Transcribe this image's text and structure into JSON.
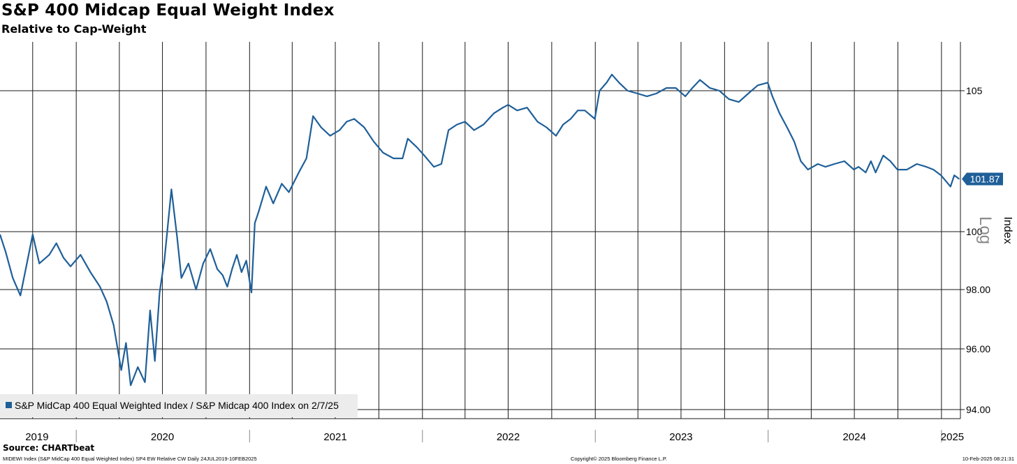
{
  "colors": {
    "series": "#1f5f99",
    "grid": "#1a1a1a",
    "legend_bg": "#ececec",
    "last_tag_bg": "#1f5f99"
  },
  "chart_data": {
    "type": "line",
    "title": "S&P 400 Midcap Equal Weight Index",
    "subtitle": "Relative to Cap-Weight",
    "ylabel": "Index",
    "scale": "Log",
    "ylim": [
      94,
      106.5
    ],
    "xlim": [
      "2019-07-24",
      "2025-02-10"
    ],
    "yticks": [
      {
        "value": 105,
        "label": "105"
      },
      {
        "value": 100,
        "label": "100"
      },
      {
        "value": 98,
        "label": "98.00"
      },
      {
        "value": 96,
        "label": "96.00"
      },
      {
        "value": 94,
        "label": "94.00"
      }
    ],
    "year_labels": [
      {
        "label": "2019",
        "date": "2019-10-10"
      },
      {
        "label": "2020",
        "date": "2020-07-01"
      },
      {
        "label": "2021",
        "date": "2021-07-01"
      },
      {
        "label": "2022",
        "date": "2022-07-01"
      },
      {
        "label": "2023",
        "date": "2023-07-01"
      },
      {
        "label": "2024",
        "date": "2024-07-01"
      },
      {
        "label": "2025",
        "date": "2025-01-24"
      }
    ],
    "legend": "S&P MidCap 400 Equal Weighted Index / S&P Midcap 400 Index on 2/7/25",
    "legend_position": "bottom-left",
    "last_value_label": "101.87",
    "grid": true,
    "series": [
      {
        "name": "S&P MidCap 400 Equal Weighted Index / S&P Midcap 400 Index",
        "points": [
          [
            "2019-07-24",
            99.9
          ],
          [
            "2019-08-05",
            99.3
          ],
          [
            "2019-08-20",
            98.4
          ],
          [
            "2019-09-05",
            97.8
          ],
          [
            "2019-09-20",
            99.0
          ],
          [
            "2019-10-01",
            99.9
          ],
          [
            "2019-10-15",
            98.9
          ],
          [
            "2019-11-05",
            99.2
          ],
          [
            "2019-11-20",
            99.6
          ],
          [
            "2019-12-05",
            99.1
          ],
          [
            "2019-12-20",
            98.8
          ],
          [
            "2020-01-10",
            99.2
          ],
          [
            "2020-01-31",
            98.6
          ],
          [
            "2020-02-20",
            98.1
          ],
          [
            "2020-03-05",
            97.6
          ],
          [
            "2020-03-20",
            96.8
          ],
          [
            "2020-04-05",
            95.3
          ],
          [
            "2020-04-15",
            96.2
          ],
          [
            "2020-04-25",
            94.8
          ],
          [
            "2020-05-10",
            95.4
          ],
          [
            "2020-05-25",
            94.9
          ],
          [
            "2020-06-05",
            97.3
          ],
          [
            "2020-06-15",
            95.6
          ],
          [
            "2020-06-25",
            97.9
          ],
          [
            "2020-07-05",
            99.0
          ],
          [
            "2020-07-20",
            101.5
          ],
          [
            "2020-08-01",
            99.8
          ],
          [
            "2020-08-10",
            98.4
          ],
          [
            "2020-08-25",
            98.9
          ],
          [
            "2020-09-10",
            98.0
          ],
          [
            "2020-09-25",
            98.9
          ],
          [
            "2020-10-10",
            99.4
          ],
          [
            "2020-10-25",
            98.7
          ],
          [
            "2020-11-05",
            98.5
          ],
          [
            "2020-11-15",
            98.1
          ],
          [
            "2020-11-25",
            98.7
          ],
          [
            "2020-12-05",
            99.2
          ],
          [
            "2020-12-15",
            98.6
          ],
          [
            "2020-12-25",
            99.0
          ],
          [
            "2021-01-05",
            97.9
          ],
          [
            "2021-01-12",
            100.3
          ],
          [
            "2021-01-20",
            100.7
          ],
          [
            "2021-02-05",
            101.6
          ],
          [
            "2021-02-20",
            101.0
          ],
          [
            "2021-03-10",
            101.7
          ],
          [
            "2021-03-25",
            101.4
          ],
          [
            "2021-04-15",
            102.1
          ],
          [
            "2021-05-01",
            102.6
          ],
          [
            "2021-05-15",
            104.1
          ],
          [
            "2021-06-01",
            103.7
          ],
          [
            "2021-06-20",
            103.4
          ],
          [
            "2021-07-10",
            103.6
          ],
          [
            "2021-07-25",
            103.9
          ],
          [
            "2021-08-10",
            104.0
          ],
          [
            "2021-08-31",
            103.7
          ],
          [
            "2021-09-20",
            103.2
          ],
          [
            "2021-10-10",
            102.8
          ],
          [
            "2021-11-01",
            102.6
          ],
          [
            "2021-11-20",
            102.6
          ],
          [
            "2021-12-01",
            103.3
          ],
          [
            "2021-12-20",
            103.0
          ],
          [
            "2022-01-05",
            102.7
          ],
          [
            "2022-01-25",
            102.3
          ],
          [
            "2022-02-10",
            102.4
          ],
          [
            "2022-02-25",
            103.6
          ],
          [
            "2022-03-15",
            103.8
          ],
          [
            "2022-04-01",
            103.9
          ],
          [
            "2022-04-20",
            103.6
          ],
          [
            "2022-05-10",
            103.8
          ],
          [
            "2022-06-01",
            104.2
          ],
          [
            "2022-06-20",
            104.4
          ],
          [
            "2022-07-01",
            104.5
          ],
          [
            "2022-07-20",
            104.3
          ],
          [
            "2022-08-10",
            104.4
          ],
          [
            "2022-09-01",
            103.9
          ],
          [
            "2022-09-20",
            103.7
          ],
          [
            "2022-10-10",
            103.4
          ],
          [
            "2022-10-25",
            103.8
          ],
          [
            "2022-11-10",
            104.0
          ],
          [
            "2022-11-25",
            104.3
          ],
          [
            "2022-12-10",
            104.3
          ],
          [
            "2022-12-31",
            104.0
          ],
          [
            "2023-01-10",
            105.0
          ],
          [
            "2023-01-25",
            105.3
          ],
          [
            "2023-02-05",
            105.6
          ],
          [
            "2023-02-20",
            105.3
          ],
          [
            "2023-03-10",
            105.0
          ],
          [
            "2023-03-31",
            104.9
          ],
          [
            "2023-04-20",
            104.8
          ],
          [
            "2023-05-10",
            104.9
          ],
          [
            "2023-05-31",
            105.1
          ],
          [
            "2023-06-20",
            105.1
          ],
          [
            "2023-07-10",
            104.8
          ],
          [
            "2023-07-25",
            105.1
          ],
          [
            "2023-08-10",
            105.4
          ],
          [
            "2023-08-31",
            105.1
          ],
          [
            "2023-09-20",
            105.0
          ],
          [
            "2023-10-10",
            104.7
          ],
          [
            "2023-10-31",
            104.6
          ],
          [
            "2023-11-20",
            104.9
          ],
          [
            "2023-12-10",
            105.2
          ],
          [
            "2023-12-31",
            105.3
          ],
          [
            "2024-01-10",
            104.8
          ],
          [
            "2024-01-25",
            104.2
          ],
          [
            "2024-02-10",
            103.7
          ],
          [
            "2024-02-25",
            103.2
          ],
          [
            "2024-03-10",
            102.5
          ],
          [
            "2024-03-25",
            102.2
          ],
          [
            "2024-04-15",
            102.4
          ],
          [
            "2024-05-01",
            102.3
          ],
          [
            "2024-05-20",
            102.4
          ],
          [
            "2024-06-10",
            102.5
          ],
          [
            "2024-06-30",
            102.2
          ],
          [
            "2024-07-10",
            102.3
          ],
          [
            "2024-07-25",
            102.1
          ],
          [
            "2024-08-05",
            102.5
          ],
          [
            "2024-08-15",
            102.1
          ],
          [
            "2024-08-31",
            102.7
          ],
          [
            "2024-09-15",
            102.5
          ],
          [
            "2024-09-30",
            102.2
          ],
          [
            "2024-10-20",
            102.2
          ],
          [
            "2024-11-10",
            102.4
          ],
          [
            "2024-11-30",
            102.3
          ],
          [
            "2024-12-15",
            102.2
          ],
          [
            "2024-12-31",
            102.0
          ],
          [
            "2025-01-10",
            101.8
          ],
          [
            "2025-01-20",
            101.6
          ],
          [
            "2025-01-28",
            102.0
          ],
          [
            "2025-02-05",
            101.9
          ],
          [
            "2025-02-07",
            101.87
          ]
        ]
      }
    ]
  },
  "footer": {
    "source": "Source: CHARTbeat",
    "ticker_line": "MIDEWI Index (S&P MidCap 400 Equal Weighted Index) SP4 EW Relative CW  Daily 24JUL2019-10FEB2025",
    "copyright": "Copyright© 2025 Bloomberg Finance L.P.",
    "timestamp": "10-Feb-2025 08:21:31"
  }
}
